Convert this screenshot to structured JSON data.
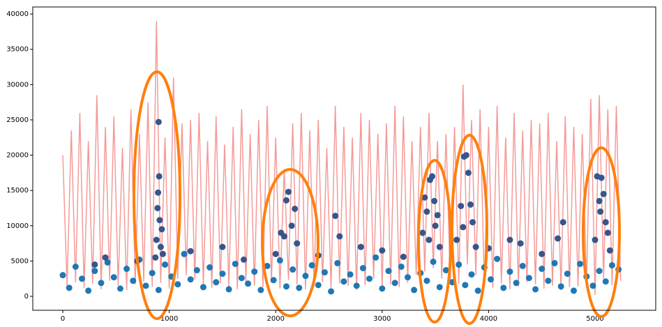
{
  "chart_data": {
    "type": "combo",
    "xlim": [
      -282,
      5570
    ],
    "ylim": [
      -1975,
      41000
    ],
    "xticks": [
      0,
      1000,
      2000,
      3000,
      4000,
      5000
    ],
    "yticks": [
      0,
      5000,
      10000,
      15000,
      20000,
      25000,
      30000,
      35000,
      40000
    ],
    "grid": false,
    "series": [
      {
        "kind": "line",
        "color": "#f49a98",
        "x": [
          0,
          40,
          80,
          120,
          160,
          200,
          240,
          280,
          320,
          360,
          400,
          440,
          480,
          520,
          560,
          600,
          640,
          680,
          720,
          760,
          800,
          840,
          880,
          920,
          960,
          1000,
          1040,
          1080,
          1120,
          1160,
          1200,
          1240,
          1280,
          1320,
          1360,
          1400,
          1440,
          1480,
          1520,
          1560,
          1600,
          1640,
          1680,
          1720,
          1760,
          1800,
          1840,
          1880,
          1920,
          1960,
          2000,
          2040,
          2080,
          2120,
          2160,
          2200,
          2240,
          2280,
          2320,
          2360,
          2400,
          2440,
          2480,
          2520,
          2560,
          2600,
          2640,
          2680,
          2720,
          2760,
          2800,
          2840,
          2880,
          2920,
          2960,
          3000,
          3040,
          3080,
          3120,
          3160,
          3200,
          3240,
          3280,
          3320,
          3360,
          3400,
          3440,
          3480,
          3520,
          3560,
          3600,
          3640,
          3680,
          3720,
          3760,
          3800,
          3840,
          3880,
          3920,
          3960,
          4000,
          4040,
          4080,
          4120,
          4160,
          4200,
          4240,
          4280,
          4320,
          4360,
          4400,
          4440,
          4480,
          4520,
          4560,
          4600,
          4640,
          4680,
          4720,
          4760,
          4800,
          4840,
          4880,
          4920,
          4960,
          5000,
          5040,
          5080,
          5120,
          5160,
          5200,
          5240
        ],
        "values": [
          20000,
          1500,
          23500,
          2000,
          26000,
          1200,
          22000,
          1800,
          28500,
          1000,
          24000,
          2200,
          25500,
          1500,
          21000,
          900,
          26500,
          1700,
          23000,
          2100,
          27500,
          1300,
          39000,
          1900,
          22500,
          1100,
          31000,
          2500,
          24500,
          3000,
          25000,
          2400,
          26000,
          1600,
          22000,
          1200,
          25500,
          1800,
          21500,
          1400,
          24000,
          1000,
          26500,
          2000,
          23000,
          1500,
          25000,
          1300,
          27000,
          1900,
          22500,
          1100,
          18000,
          2300,
          24500,
          1700,
          26000,
          1000,
          23500,
          1400,
          25000,
          2000,
          21000,
          1200,
          27000,
          1800,
          24000,
          1500,
          22500,
          900,
          26000,
          1600,
          25000,
          2500,
          23000,
          1200,
          24500,
          1700,
          27000,
          1300,
          25500,
          1900,
          22000,
          3000,
          24000,
          3500,
          26000,
          4000,
          22000,
          2500,
          23000,
          2000,
          24000,
          1800,
          30000,
          4500,
          25000,
          3000,
          26500,
          1600,
          24000,
          1200,
          27000,
          1800,
          22500,
          1000,
          26000,
          1400,
          23500,
          2000,
          25000,
          1700,
          24500,
          1100,
          26000,
          1500,
          22000,
          900,
          25500,
          1300,
          24000,
          1400,
          23000,
          1800,
          28000,
          200,
          28500,
          2500,
          26500,
          1600,
          27000,
          2200
        ]
      },
      {
        "kind": "scatter",
        "color": "#1f77b4",
        "x": [
          0,
          60,
          120,
          180,
          240,
          300,
          360,
          420,
          480,
          540,
          600,
          660,
          720,
          780,
          840,
          900,
          960,
          1020,
          1080,
          1140,
          1200,
          1260,
          1320,
          1380,
          1440,
          1500,
          1560,
          1620,
          1680,
          1740,
          1800,
          1860,
          1920,
          1980,
          2040,
          2100,
          2160,
          2220,
          2280,
          2340,
          2400,
          2460,
          2520,
          2580,
          2640,
          2700,
          2760,
          2820,
          2880,
          2940,
          3000,
          3060,
          3120,
          3180,
          3240,
          3300,
          3360,
          3420,
          3480,
          3540,
          3600,
          3660,
          3720,
          3780,
          3840,
          3900,
          3960,
          4020,
          4080,
          4140,
          4200,
          4260,
          4320,
          4380,
          4440,
          4500,
          4560,
          4620,
          4680,
          4740,
          4800,
          4860,
          4920,
          4980,
          5040,
          5100,
          5160,
          5220
        ],
        "values": [
          3000,
          1200,
          4200,
          2500,
          800,
          3600,
          1900,
          4800,
          2700,
          1100,
          3900,
          2200,
          5200,
          1500,
          3300,
          900,
          4500,
          2800,
          1700,
          6000,
          2400,
          3700,
          1300,
          4100,
          2000,
          3200,
          1000,
          4600,
          2600,
          1800,
          3500,
          900,
          4300,
          2300,
          5100,
          1400,
          3800,
          1200,
          2900,
          4400,
          1600,
          3400,
          700,
          4700,
          2100,
          3100,
          1500,
          4000,
          2500,
          5500,
          1100,
          3600,
          1900,
          4200,
          2700,
          900,
          3300,
          2200,
          4900,
          1300,
          3700,
          2000,
          4500,
          1600,
          3100,
          800,
          4100,
          2400,
          5300,
          1200,
          3500,
          1900,
          4300,
          2600,
          1000,
          3900,
          2200,
          4700,
          1400,
          3200,
          800,
          4600,
          2800,
          1500,
          3600,
          2100,
          4400,
          3800
        ]
      },
      {
        "kind": "scatter",
        "color": "#35568c",
        "x": [
          880,
          890,
          895,
          900,
          905,
          910,
          920,
          930,
          940,
          870,
          2100,
          2120,
          2150,
          2180,
          2080,
          2200,
          2050,
          2000,
          3400,
          3420,
          3450,
          3470,
          3490,
          3500,
          3520,
          3440,
          3540,
          3380,
          3740,
          3770,
          3790,
          3810,
          3830,
          3760,
          3850,
          3700,
          3880,
          5020,
          5040,
          5060,
          5080,
          5100,
          5050,
          5000,
          5120,
          5140,
          400,
          1200,
          1500,
          2560,
          2600,
          2800,
          4200,
          4650,
          4700,
          4300,
          300,
          700,
          1700,
          2400,
          3000,
          3200,
          4000,
          4500
        ],
        "values": [
          8000,
          12500,
          14700,
          24700,
          17000,
          10800,
          7000,
          9500,
          6000,
          5500,
          13600,
          14800,
          10000,
          12400,
          8500,
          7500,
          9000,
          6000,
          14000,
          12000,
          16500,
          17000,
          13500,
          10000,
          11500,
          8000,
          7000,
          9000,
          12800,
          19800,
          20000,
          17500,
          13000,
          9800,
          10500,
          8000,
          7000,
          17000,
          13500,
          16800,
          14500,
          10500,
          12000,
          8000,
          9000,
          6500,
          5500,
          6400,
          7000,
          11400,
          8500,
          7000,
          8000,
          8200,
          10500,
          7500,
          4500,
          5000,
          5200,
          5800,
          6500,
          5600,
          6800,
          6000
        ]
      }
    ]
  }
}
